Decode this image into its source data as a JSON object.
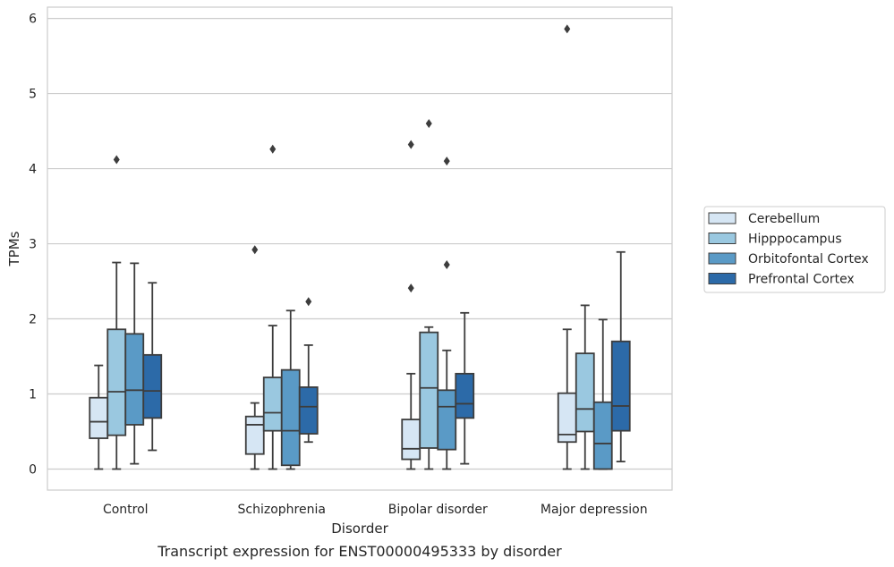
{
  "chart_data": {
    "type": "box",
    "title": "",
    "caption": "Transcript expression for ENST00000495333 by disorder",
    "xlabel": "Disorder",
    "ylabel": "TPMs",
    "ylim": [
      -0.28,
      6.15
    ],
    "yticks": [
      0,
      1,
      2,
      3,
      4,
      5,
      6
    ],
    "grid": "horizontal",
    "legend_position": "right",
    "categories": [
      "Control",
      "Schizophrenia",
      "Bipolar disorder",
      "Major depression"
    ],
    "series": [
      {
        "name": "Cerebellum",
        "color": "#d6e6f4",
        "boxes": [
          {
            "whislo": 0.0,
            "q1": 0.41,
            "med": 0.63,
            "q3": 0.95,
            "whishi": 1.38,
            "fliers": []
          },
          {
            "whislo": 0.0,
            "q1": 0.2,
            "med": 0.59,
            "q3": 0.7,
            "whishi": 0.88,
            "fliers": [
              2.92
            ]
          },
          {
            "whislo": 0.0,
            "q1": 0.13,
            "med": 0.27,
            "q3": 0.66,
            "whishi": 1.27,
            "fliers": [
              2.41,
              4.32
            ]
          },
          {
            "whislo": 0.0,
            "q1": 0.36,
            "med": 0.46,
            "q3": 1.01,
            "whishi": 1.86,
            "fliers": [
              5.86
            ]
          }
        ]
      },
      {
        "name": "Hipppocampus",
        "color": "#9ac8e0",
        "boxes": [
          {
            "whislo": 0.0,
            "q1": 0.45,
            "med": 1.03,
            "q3": 1.86,
            "whishi": 2.75,
            "fliers": [
              4.12
            ]
          },
          {
            "whislo": 0.0,
            "q1": 0.51,
            "med": 0.75,
            "q3": 1.22,
            "whishi": 1.91,
            "fliers": [
              4.26
            ]
          },
          {
            "whislo": 0.0,
            "q1": 0.28,
            "med": 1.08,
            "q3": 1.82,
            "whishi": 1.89,
            "fliers": [
              4.6
            ]
          },
          {
            "whislo": 0.0,
            "q1": 0.5,
            "med": 0.8,
            "q3": 1.54,
            "whishi": 2.18,
            "fliers": []
          }
        ]
      },
      {
        "name": "Orbitofontal Cortex",
        "color": "#5a9ac6",
        "boxes": [
          {
            "whislo": 0.07,
            "q1": 0.59,
            "med": 1.05,
            "q3": 1.8,
            "whishi": 2.74,
            "fliers": []
          },
          {
            "whislo": 0.0,
            "q1": 0.05,
            "med": 0.51,
            "q3": 1.32,
            "whishi": 2.11,
            "fliers": []
          },
          {
            "whislo": 0.0,
            "q1": 0.26,
            "med": 0.83,
            "q3": 1.05,
            "whishi": 1.58,
            "fliers": [
              2.72,
              4.1
            ]
          },
          {
            "whislo": 0.0,
            "q1": 0.0,
            "med": 0.34,
            "q3": 0.89,
            "whishi": 1.99,
            "fliers": []
          }
        ]
      },
      {
        "name": "Prefrontal Cortex",
        "color": "#2c6aa8",
        "boxes": [
          {
            "whislo": 0.25,
            "q1": 0.68,
            "med": 1.04,
            "q3": 1.52,
            "whishi": 2.48,
            "fliers": []
          },
          {
            "whislo": 0.36,
            "q1": 0.47,
            "med": 0.83,
            "q3": 1.09,
            "whishi": 1.65,
            "fliers": [
              2.23
            ]
          },
          {
            "whislo": 0.07,
            "q1": 0.68,
            "med": 0.87,
            "q3": 1.27,
            "whishi": 2.08,
            "fliers": []
          },
          {
            "whislo": 0.1,
            "q1": 0.51,
            "med": 0.84,
            "q3": 1.7,
            "whishi": 2.89,
            "fliers": []
          }
        ]
      }
    ]
  }
}
